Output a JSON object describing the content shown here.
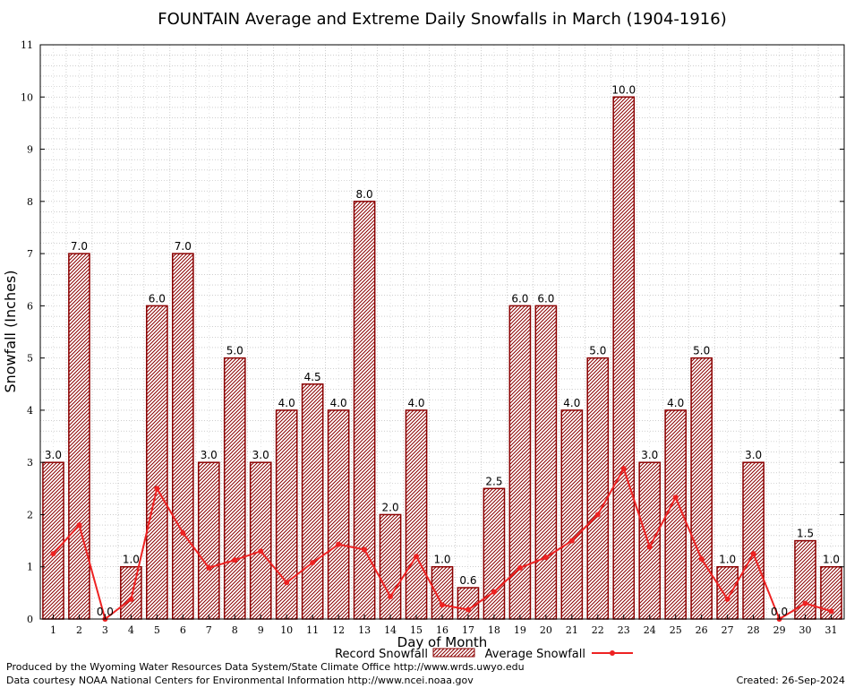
{
  "chart_data": {
    "type": "bar",
    "title": "FOUNTAIN Average and Extreme Daily Snowfalls in March (1904-1916)",
    "xlabel": "Day of Month",
    "ylabel": "Snowfall (Inches)",
    "ylim": [
      0,
      11
    ],
    "yticks": [
      "0",
      "1",
      "2",
      "3",
      "4",
      "5",
      "6",
      "7",
      "8",
      "9",
      "10",
      "11"
    ],
    "categories": [
      "1",
      "2",
      "3",
      "4",
      "5",
      "6",
      "7",
      "8",
      "9",
      "10",
      "11",
      "12",
      "13",
      "14",
      "15",
      "16",
      "17",
      "18",
      "19",
      "20",
      "21",
      "22",
      "23",
      "24",
      "25",
      "26",
      "27",
      "28",
      "29",
      "30",
      "31"
    ],
    "series": [
      {
        "name": "Record Snowfall",
        "kind": "bar",
        "color": "#8b0000",
        "values": [
          3.0,
          7.0,
          0.0,
          1.0,
          6.0,
          7.0,
          3.0,
          5.0,
          3.0,
          4.0,
          4.5,
          4.0,
          8.0,
          2.0,
          4.0,
          1.0,
          0.6,
          2.5,
          6.0,
          6.0,
          4.0,
          5.0,
          10.0,
          3.0,
          4.0,
          5.0,
          1.0,
          3.0,
          0.0,
          1.5,
          1.0
        ],
        "labels": [
          "3.0",
          "7.0",
          "0.0",
          "1.0",
          "6.0",
          "7.0",
          "3.0",
          "5.0",
          "3.0",
          "4.0",
          "4.5",
          "4.0",
          "8.0",
          "2.0",
          "4.0",
          "1.0",
          "0.6",
          "2.5",
          "6.0",
          "6.0",
          "4.0",
          "5.0",
          "10.0",
          "3.0",
          "4.0",
          "5.0",
          "1.0",
          "3.0",
          "0.0",
          "1.5",
          "1.0"
        ]
      },
      {
        "name": "Average Snowfall",
        "kind": "line",
        "color": "#ee2222",
        "values": [
          1.25,
          1.8,
          0.0,
          0.38,
          2.5,
          1.65,
          0.98,
          1.13,
          1.3,
          0.7,
          1.08,
          1.43,
          1.33,
          0.43,
          1.2,
          0.27,
          0.18,
          0.52,
          0.98,
          1.18,
          1.5,
          2.0,
          2.88,
          1.38,
          2.33,
          1.15,
          0.38,
          1.25,
          0.0,
          0.3,
          0.15
        ]
      }
    ],
    "grid": true,
    "legend_position": "bottom"
  },
  "footer": {
    "produced_by": "Produced by the Wyoming Water Resources Data System/State Climate Office http://www.wrds.uwyo.edu",
    "courtesy": "Data courtesy NOAA National Centers for Environmental Information http://www.ncei.noaa.gov",
    "created": "Created:  26-Sep-2024"
  }
}
